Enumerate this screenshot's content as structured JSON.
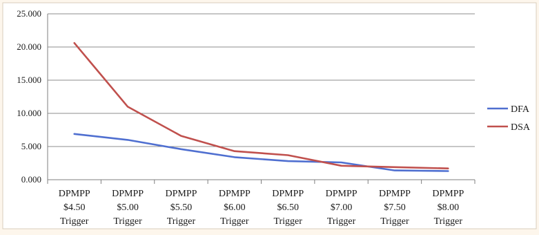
{
  "chart_data": {
    "type": "line",
    "title": "",
    "xlabel": "",
    "ylabel": "",
    "categories": [
      [
        "DPMPP",
        "$4.50",
        "Trigger"
      ],
      [
        "DPMPP",
        "$5.00",
        "Trigger"
      ],
      [
        "DPMPP",
        "$5.50",
        "Trigger"
      ],
      [
        "DPMPP",
        "$6.00",
        "Trigger"
      ],
      [
        "DPMPP",
        "$6.50",
        "Trigger"
      ],
      [
        "DPMPP",
        "$7.00",
        "Trigger"
      ],
      [
        "DPMPP",
        "$7.50",
        "Trigger"
      ],
      [
        "DPMPP",
        "$8.00",
        "Trigger"
      ]
    ],
    "yticks": [
      "0.000",
      "5.000",
      "10.000",
      "15.000",
      "20.000",
      "25.000"
    ],
    "ylim": [
      0,
      25
    ],
    "grid": true,
    "legend_position": "right",
    "series": [
      {
        "name": "DFA",
        "color": "#4f6fd0",
        "values": [
          6.9,
          6.0,
          4.6,
          3.4,
          2.8,
          2.6,
          1.4,
          1.3
        ]
      },
      {
        "name": "DSA",
        "color": "#c0504d",
        "values": [
          20.6,
          11.0,
          6.6,
          4.3,
          3.7,
          2.1,
          1.9,
          1.7
        ]
      }
    ]
  }
}
